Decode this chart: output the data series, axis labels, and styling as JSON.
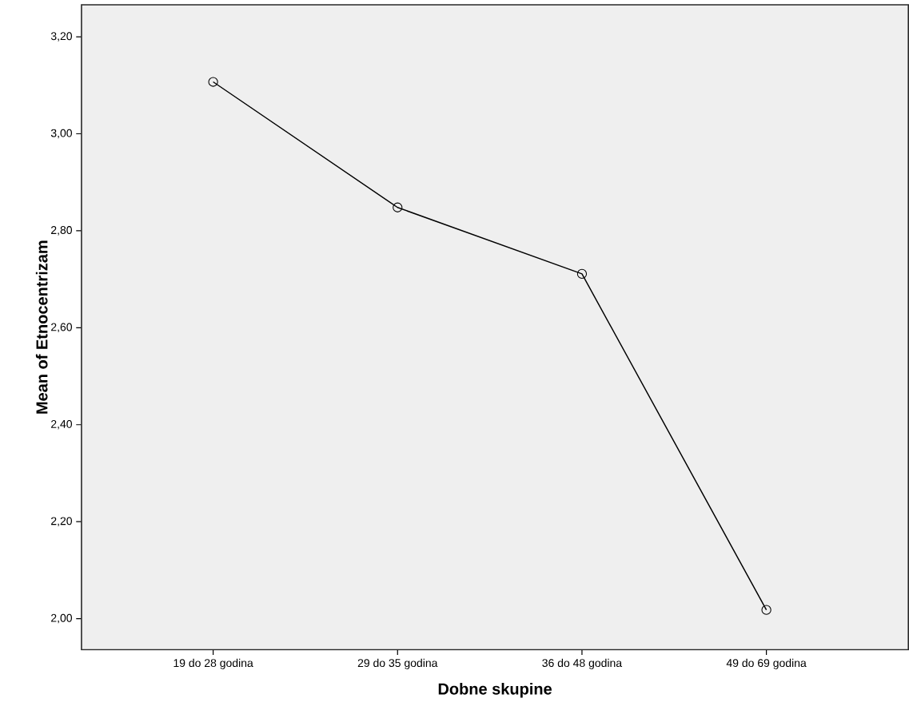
{
  "chart_data": {
    "type": "line",
    "xlabel": "Dobne skupine",
    "ylabel": "Mean of Etnocentrizam",
    "categories": [
      "19 do 28 godina",
      "29 do 35 godina",
      "36 do 48 godina",
      "49 do 69 godina"
    ],
    "values": [
      3.107,
      2.848,
      2.711,
      2.018
    ],
    "color": "#000000",
    "marker": "circle",
    "line_style": "solid",
    "ylim": [
      1.936,
      3.266
    ],
    "yticks": [
      {
        "value": 2.0,
        "label": "2,00"
      },
      {
        "value": 2.2,
        "label": "2,20"
      },
      {
        "value": 2.4,
        "label": "2,40"
      },
      {
        "value": 2.6,
        "label": "2,60"
      },
      {
        "value": 2.8,
        "label": "2,80"
      },
      {
        "value": 3.0,
        "label": "3,00"
      },
      {
        "value": 3.2,
        "label": "3,20"
      }
    ]
  }
}
